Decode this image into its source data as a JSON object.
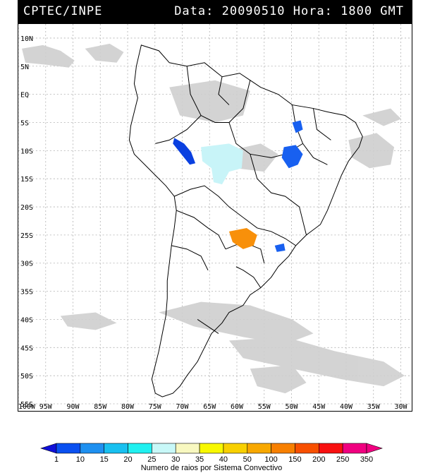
{
  "header": {
    "org": "CPTEC/INPE",
    "datetime": "Data: 20090510 Hora: 1800 GMT"
  },
  "map": {
    "lat_labels": [
      "10N",
      "5N",
      "EQ",
      "5S",
      "10S",
      "15S",
      "20S",
      "25S",
      "30S",
      "35S",
      "40S",
      "45S",
      "50S",
      "55S"
    ],
    "lon_labels": [
      "100W",
      "95W",
      "90W",
      "85W",
      "80W",
      "75W",
      "70W",
      "65W",
      "60W",
      "55W",
      "50W",
      "45W",
      "40W",
      "35W",
      "30W"
    ],
    "lat_range": [
      10,
      -55
    ],
    "lon_range": [
      -100,
      -28
    ],
    "colors": {
      "land_border": "#000000",
      "cloud": "#c8c8c8",
      "grid": "#b0b0b0"
    }
  },
  "legend": {
    "title": "Numero de raios por Sistema Convectivo",
    "values": [
      "1",
      "10",
      "15",
      "20",
      "25",
      "30",
      "35",
      "40",
      "50",
      "100",
      "150",
      "200",
      "250",
      "350"
    ],
    "colors": [
      "#1010d8",
      "#0a50f0",
      "#1e90f0",
      "#18c0f0",
      "#20f0f0",
      "#c8f8f8",
      "#f8f8c0",
      "#f8f800",
      "#f8d000",
      "#f8a800",
      "#f88000",
      "#f85000",
      "#f81010",
      "#f00080"
    ]
  }
}
